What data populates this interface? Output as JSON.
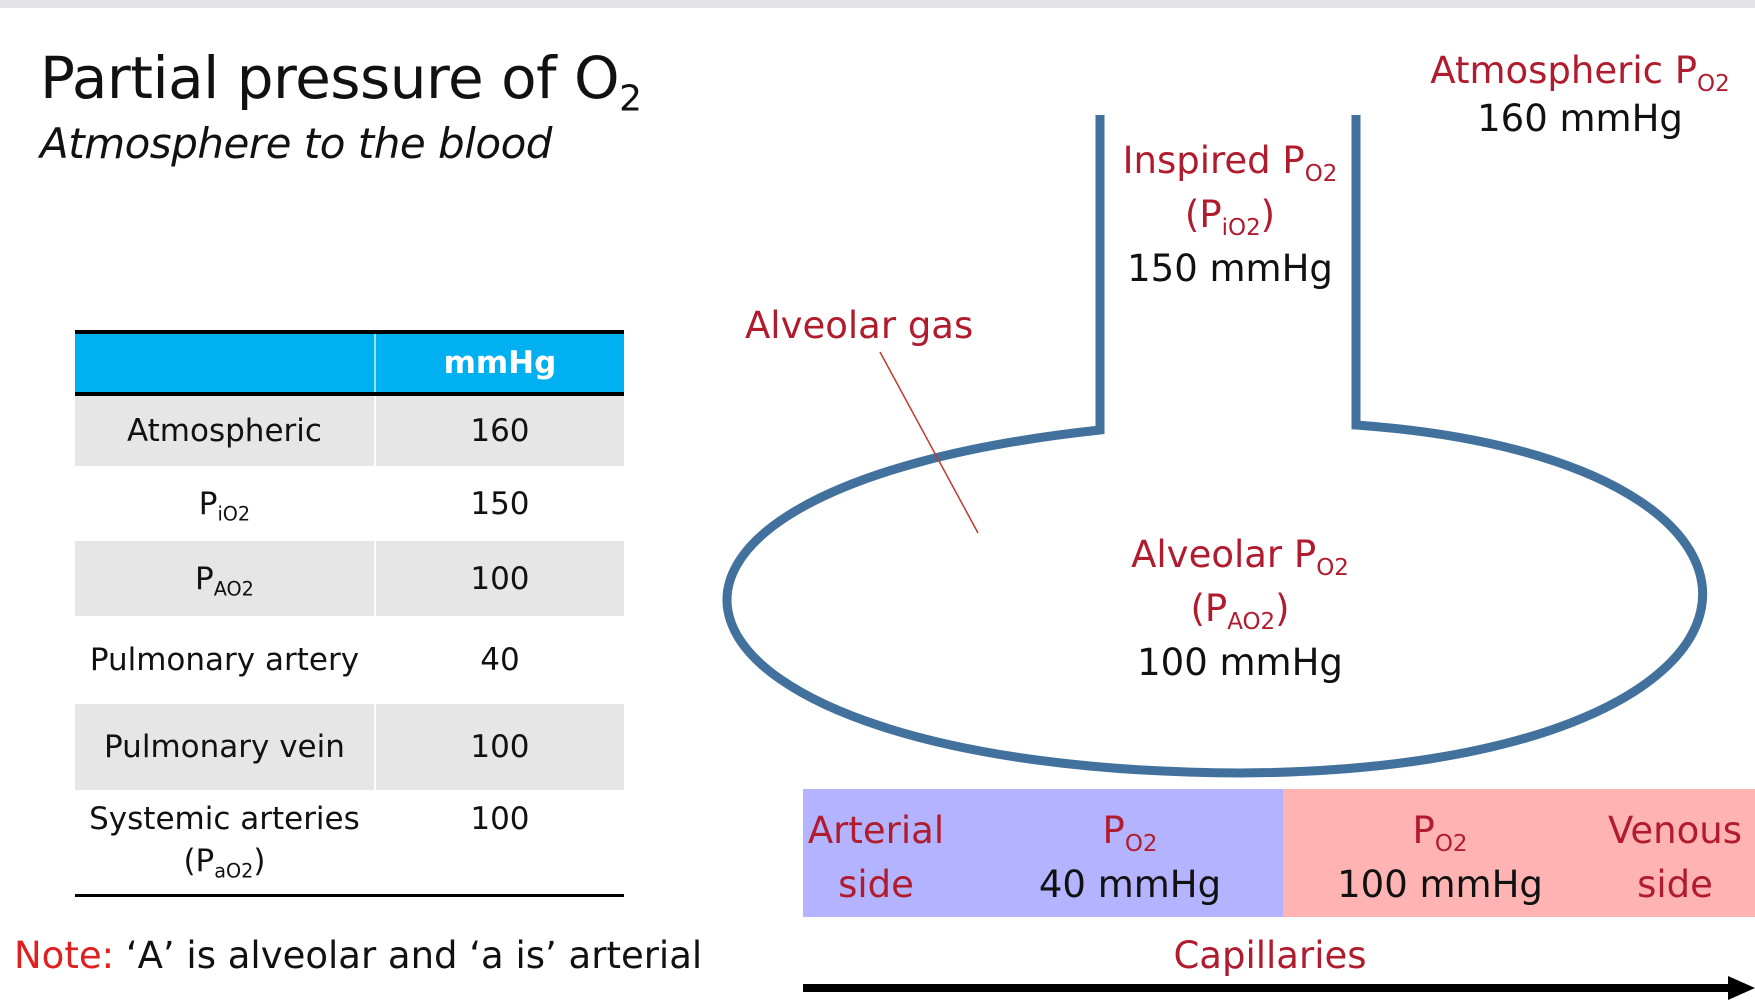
{
  "title": {
    "main": "Partial pressure of O",
    "sub": "2",
    "subtitle": "Atmosphere to the blood"
  },
  "table": {
    "header": {
      "label": "",
      "unit": "mmHg"
    },
    "rows": [
      {
        "label": "Atmospheric",
        "sub": "",
        "tail": "",
        "value": "160"
      },
      {
        "label": "P",
        "sub": "iO2",
        "tail": "",
        "value": "150"
      },
      {
        "label": "P",
        "sub": "AO2",
        "tail": "",
        "value": "100"
      },
      {
        "label": "Pulmonary artery",
        "sub": "",
        "tail": "",
        "value": "40"
      },
      {
        "label": "Pulmonary vein",
        "sub": "",
        "tail": "",
        "value": "100"
      },
      {
        "label": "Systemic arteries",
        "line2": "(P",
        "sub": "aO2",
        "tail": ")",
        "value": "100"
      }
    ]
  },
  "note": {
    "label": "Note:",
    "text": " ‘A’ is alveolar and ‘a is’ arterial"
  },
  "diagram": {
    "atmospheric": {
      "label": "Atmospheric P",
      "sub": "O2",
      "value": "160 mmHg"
    },
    "inspired": {
      "label": "Inspired P",
      "sub": "O2",
      "paren_open": "(P",
      "paren_sub": "iO2",
      "paren_close": ")",
      "value": "150 mmHg"
    },
    "alveolar_gas": "Alveolar gas",
    "alveolar": {
      "label": "Alveolar P",
      "sub": "O2",
      "paren_open": "(P",
      "paren_sub": "AO2",
      "paren_close": ")",
      "value": "100 mmHg"
    },
    "capillary": {
      "arterial_side": [
        "Arterial",
        "side"
      ],
      "venous_side": [
        "Venous",
        "side"
      ],
      "left_po2": {
        "label": "P",
        "sub": "O2",
        "value": "40 mmHg"
      },
      "right_po2": {
        "label": "P",
        "sub": "O2",
        "value": "100 mmHg"
      },
      "caption": "Capillaries"
    },
    "colors": {
      "vessel": "#41719c",
      "label_red": "#b01c2e",
      "arterial_fill": "#b3b3ff",
      "venous_fill": "#ffb3b3",
      "header_blue": "#00b0f0"
    }
  }
}
